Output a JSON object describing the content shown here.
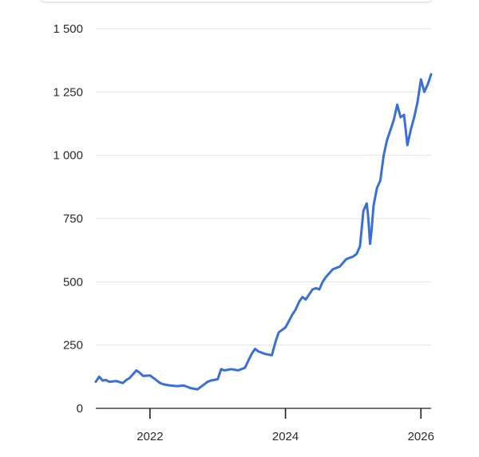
{
  "chart_data": {
    "type": "line",
    "title": "",
    "xlabel": "",
    "ylabel": "",
    "xlim": [
      2021.2,
      2026.15
    ],
    "ylim": [
      0,
      1500
    ],
    "yticks": [
      0,
      250,
      500,
      750,
      1000,
      1250,
      1500
    ],
    "ytick_labels": [
      "0",
      "250",
      "500",
      "750",
      "1 000",
      "1 250",
      "1 500"
    ],
    "xticks": [
      2022,
      2024,
      2026
    ],
    "xtick_labels": [
      "2022",
      "2024",
      "2026"
    ],
    "grid": true,
    "line_color": "#3b6fd8",
    "series": [
      {
        "x": [
          2021.2,
          2021.25,
          2021.3,
          2021.35,
          2021.4,
          2021.5,
          2021.6,
          2021.65,
          2021.7,
          2021.8,
          2021.85,
          2021.9,
          2022.0,
          2022.1,
          2022.15,
          2022.2,
          2022.3,
          2022.4,
          2022.5,
          2022.6,
          2022.7,
          2022.8,
          2022.85,
          2022.9,
          2023.0,
          2023.05,
          2023.1,
          2023.2,
          2023.3,
          2023.4,
          2023.5,
          2023.55,
          2023.6,
          2023.7,
          2023.8,
          2023.85,
          2023.9,
          2024.0,
          2024.1,
          2024.15,
          2024.2,
          2024.25,
          2024.3,
          2024.4,
          2024.45,
          2024.5,
          2024.55,
          2024.6,
          2024.7,
          2024.8,
          2024.9,
          2025.0,
          2025.05,
          2025.1,
          2025.15,
          2025.2,
          2025.22,
          2025.25,
          2025.27,
          2025.3,
          2025.35,
          2025.4,
          2025.45,
          2025.5,
          2025.55,
          2025.6,
          2025.65,
          2025.7,
          2025.75,
          2025.8,
          2025.85,
          2025.9,
          2025.95,
          2026.0,
          2026.05,
          2026.1,
          2026.15
        ],
        "y": [
          105,
          125,
          110,
          112,
          105,
          108,
          100,
          112,
          120,
          150,
          140,
          128,
          130,
          110,
          100,
          95,
          90,
          88,
          90,
          80,
          75,
          95,
          105,
          110,
          115,
          155,
          150,
          155,
          150,
          160,
          215,
          235,
          225,
          215,
          210,
          260,
          300,
          320,
          370,
          390,
          420,
          440,
          430,
          470,
          475,
          470,
          500,
          520,
          550,
          560,
          590,
          600,
          610,
          640,
          780,
          810,
          760,
          650,
          700,
          800,
          870,
          900,
          1000,
          1060,
          1100,
          1140,
          1200,
          1150,
          1160,
          1040,
          1100,
          1150,
          1210,
          1300,
          1250,
          1280,
          1320
        ]
      }
    ]
  }
}
